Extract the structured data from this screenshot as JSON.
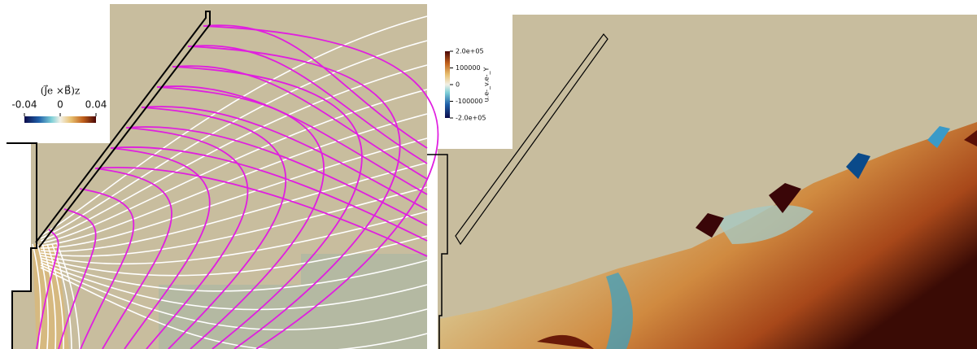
{
  "left_panel": {
    "colorbar": {
      "title": "(J⃗e ×B⃗)z",
      "range": [
        -0.04,
        0.04
      ],
      "ticks": [
        -0.04,
        0,
        0.04
      ]
    }
  },
  "right_panel": {
    "colorbar": {
      "title": "u.e-_v.e-_Y",
      "range": [
        -200000,
        200000
      ],
      "ticks": [
        {
          "value": 200000,
          "label": "2.0e+05"
        },
        {
          "value": 100000,
          "label": "100000"
        },
        0,
        {
          "value": -100000,
          "label": "-100000"
        },
        {
          "value": -200000,
          "label": "-2.0e+05"
        }
      ]
    }
  }
}
